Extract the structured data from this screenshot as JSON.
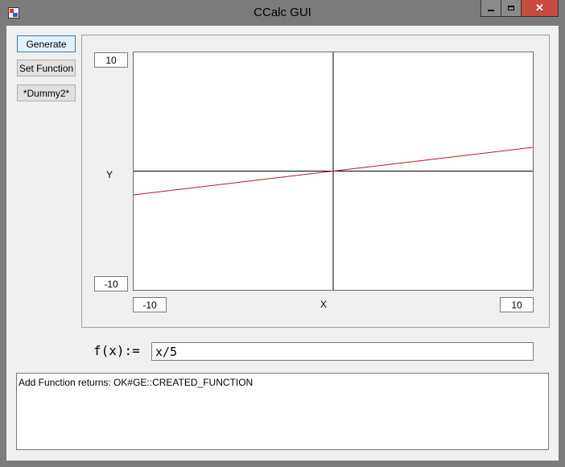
{
  "window": {
    "title": "CCalc GUI",
    "controls": {
      "close": "✕"
    }
  },
  "buttons": {
    "generate": "Generate",
    "set_function": "Set Function",
    "dummy2": "*Dummy2*"
  },
  "plot": {
    "y_label": "Y",
    "x_label": "X",
    "y_max": "10",
    "y_min": "-10",
    "x_min": "-10",
    "x_max": "10",
    "axis_color": "#000000",
    "curve_color": "#c0142a"
  },
  "chart_data": {
    "type": "line",
    "xlabel": "X",
    "ylabel": "Y",
    "xlim": [
      -10,
      10
    ],
    "ylim": [
      -10,
      10
    ],
    "series": [
      {
        "x": [
          -10,
          10
        ],
        "y": [
          -2,
          2
        ]
      }
    ]
  },
  "function": {
    "label": "f(x):=",
    "value": "x/5"
  },
  "log": {
    "text": "Add Function returns: OK#GE::CREATED_FUNCTION"
  }
}
